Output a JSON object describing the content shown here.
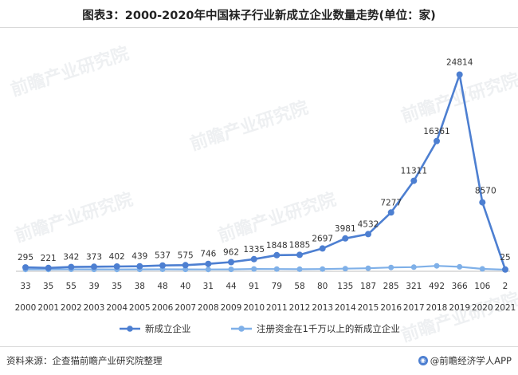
{
  "title": "图表3：2000-2020年中国袜子行业新成立企业数量走势(单位：家)",
  "watermark": "前瞻产业研究院",
  "footer": {
    "source": "资料来源：企查猫前瞻产业研究院整理",
    "brand": "@前瞻经济学人APP",
    "brand_icon": "qianzhan-logo-icon"
  },
  "colors": {
    "series1": "#4d7fd1",
    "series2": "#7fb0e8"
  },
  "chart_data": {
    "type": "line",
    "title": "图表3：2000-2020年中国袜子行业新成立企业数量走势(单位：家)",
    "categories": [
      "2000",
      "2001",
      "2002",
      "2003",
      "2004",
      "2005",
      "2006",
      "2007",
      "2008",
      "2009",
      "2010",
      "2011",
      "2012",
      "2013",
      "2014",
      "2015",
      "2016",
      "2017",
      "2018",
      "2019",
      "2020",
      "2021"
    ],
    "series": [
      {
        "name": "新成立企业",
        "values": [
          295,
          221,
          342,
          373,
          402,
          439,
          537,
          575,
          746,
          962,
          1335,
          1848,
          1885,
          2697,
          3981,
          4532,
          7277,
          11311,
          16361,
          24814,
          8570,
          25
        ],
        "labels": [
          "295",
          "221",
          "342",
          "373",
          "402",
          "439",
          "537",
          "575",
          "746",
          "962",
          "1335",
          "1848",
          "1885",
          "2697",
          "3981",
          "4532",
          "7277",
          "11311",
          "16361",
          "24814",
          "8570",
          "25"
        ]
      },
      {
        "name": "注册资金在1千万以上的新成立企业",
        "values": [
          33,
          35,
          55,
          39,
          35,
          38,
          48,
          40,
          31,
          44,
          91,
          79,
          58,
          80,
          135,
          187,
          285,
          321,
          492,
          366,
          106,
          2
        ],
        "labels": [
          "33",
          "35",
          "55",
          "39",
          "35",
          "38",
          "48",
          "40",
          "31",
          "44",
          "91",
          "79",
          "58",
          "80",
          "135",
          "187",
          "285",
          "321",
          "492",
          "366",
          "106",
          "2"
        ]
      }
    ],
    "ylim": [
      0,
      27000
    ],
    "grid": false,
    "legend": "bottom"
  }
}
